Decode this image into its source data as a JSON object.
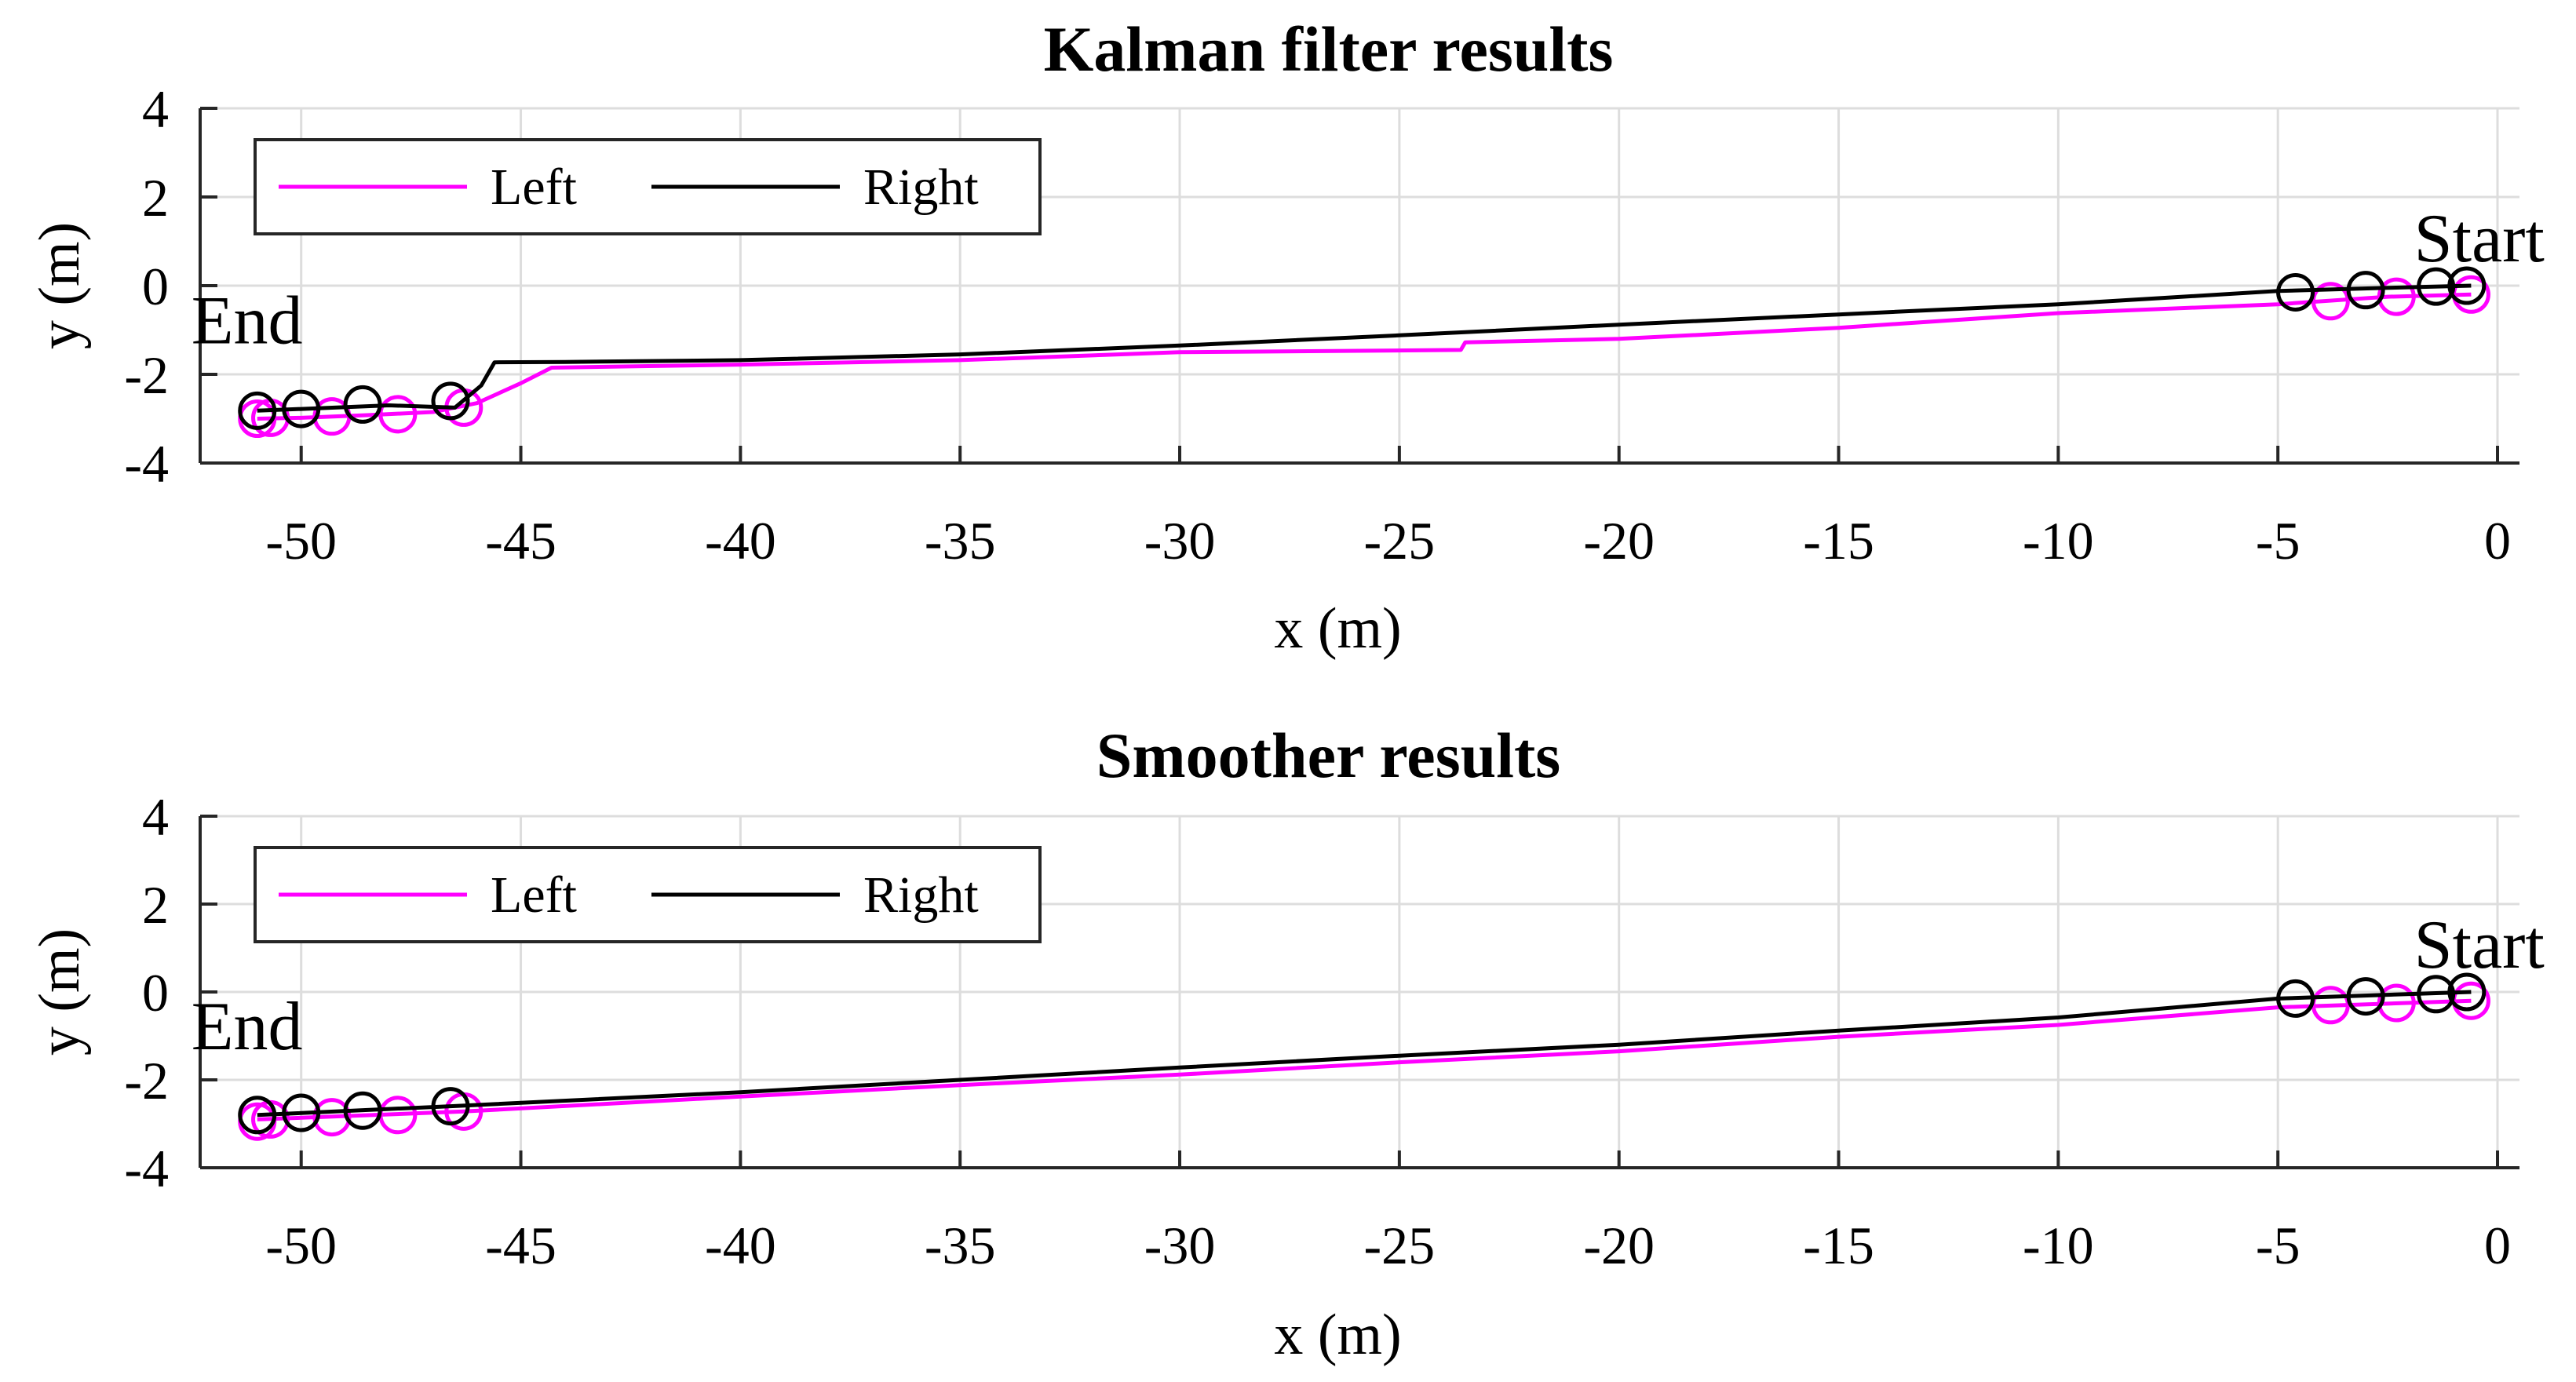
{
  "colors": {
    "left": "#ff00ff",
    "right": "#000000",
    "grid": "#dddddd",
    "axis": "#262626"
  },
  "chart_data": [
    {
      "type": "line",
      "title": "Kalman filter results",
      "xlabel": "x (m)",
      "ylabel": "y (m)",
      "xlim": [
        -52.3,
        0.5
      ],
      "ylim": [
        -4,
        4
      ],
      "xticks": [
        -50,
        -45,
        -40,
        -35,
        -30,
        -25,
        -20,
        -15,
        -10,
        -5,
        0
      ],
      "xtick_labels": [
        "-50",
        "-45",
        "-40",
        "-35",
        "-30",
        "-25",
        "-20",
        "-15",
        "-10",
        "-5",
        "0"
      ],
      "yticks": [
        -4,
        -2,
        0,
        2,
        4
      ],
      "ytick_labels": [
        "-4",
        "-2",
        "0",
        "2",
        "4"
      ],
      "grid": true,
      "legend": {
        "position": "top-left",
        "entries": [
          "Left",
          "Right"
        ]
      },
      "series": [
        {
          "name": "Left",
          "x": [
            -0.6,
            -2.5,
            -5.0,
            -10.0,
            -15.0,
            -20.0,
            -23.5,
            -23.6,
            -30.0,
            -35.0,
            -40.0,
            -44.3,
            -45.0,
            -46.0,
            -47.0,
            -48.5,
            -50.0,
            -51.0
          ],
          "y": [
            -0.2,
            -0.25,
            -0.42,
            -0.62,
            -0.95,
            -1.2,
            -1.28,
            -1.45,
            -1.5,
            -1.68,
            -1.78,
            -1.85,
            -2.2,
            -2.65,
            -2.85,
            -2.92,
            -2.98,
            -3.0
          ],
          "markers_x": [
            -0.6,
            -2.3,
            -3.8,
            -46.3,
            -47.8,
            -49.3,
            -50.7,
            -51.0
          ],
          "markers_y": [
            -0.2,
            -0.25,
            -0.35,
            -2.75,
            -2.9,
            -2.95,
            -2.98,
            -3.0
          ]
        },
        {
          "name": "Right",
          "x": [
            -0.6,
            -2.5,
            -5.0,
            -10.0,
            -15.0,
            -20.0,
            -25.0,
            -30.0,
            -35.0,
            -40.0,
            -44.0,
            -45.6,
            -45.9,
            -46.5,
            -48.0,
            -50.0,
            -51.0
          ],
          "y": [
            0.0,
            -0.05,
            -0.12,
            -0.42,
            -0.65,
            -0.88,
            -1.12,
            -1.35,
            -1.55,
            -1.68,
            -1.72,
            -1.73,
            -2.25,
            -2.75,
            -2.7,
            -2.78,
            -2.82
          ],
          "markers_x": [
            -0.7,
            -1.4,
            -3.0,
            -4.6,
            -46.6,
            -48.6,
            -50.0,
            -51.0
          ],
          "markers_y": [
            0.0,
            -0.02,
            -0.1,
            -0.15,
            -2.6,
            -2.68,
            -2.78,
            -2.82
          ]
        }
      ],
      "annotations": [
        {
          "text": "Start",
          "x": -1.9,
          "y": 0.55
        },
        {
          "text": "End",
          "x": -52.5,
          "y": -1.3
        }
      ]
    },
    {
      "type": "line",
      "title": "Smoother results",
      "xlabel": "x (m)",
      "ylabel": "y (m)",
      "xlim": [
        -52.3,
        0.5
      ],
      "ylim": [
        -4,
        4
      ],
      "xticks": [
        -50,
        -45,
        -40,
        -35,
        -30,
        -25,
        -20,
        -15,
        -10,
        -5,
        0
      ],
      "xtick_labels": [
        "-50",
        "-45",
        "-40",
        "-35",
        "-30",
        "-25",
        "-20",
        "-15",
        "-10",
        "-5",
        "0"
      ],
      "yticks": [
        -4,
        -2,
        0,
        2,
        4
      ],
      "ytick_labels": [
        "-4",
        "-2",
        "0",
        "2",
        "4"
      ],
      "grid": true,
      "legend": {
        "position": "top-left",
        "entries": [
          "Left",
          "Right"
        ]
      },
      "series": [
        {
          "name": "Left",
          "x": [
            -0.6,
            -5.0,
            -10.0,
            -15.0,
            -20.0,
            -25.0,
            -30.0,
            -35.0,
            -40.0,
            -46.3,
            -51.0
          ],
          "y": [
            -0.2,
            -0.35,
            -0.75,
            -1.02,
            -1.35,
            -1.6,
            -1.88,
            -2.12,
            -2.38,
            -2.72,
            -2.9
          ],
          "markers_x": [
            -0.6,
            -2.3,
            -3.8,
            -46.3,
            -47.8,
            -49.3,
            -50.7,
            -51.0
          ],
          "markers_y": [
            -0.2,
            -0.25,
            -0.3,
            -2.72,
            -2.8,
            -2.85,
            -2.9,
            -2.95
          ]
        },
        {
          "name": "Right",
          "x": [
            -0.6,
            -5.0,
            -10.0,
            -15.0,
            -20.0,
            -25.0,
            -30.0,
            -35.0,
            -40.0,
            -46.6,
            -51.0
          ],
          "y": [
            0.0,
            -0.15,
            -0.58,
            -0.88,
            -1.2,
            -1.45,
            -1.72,
            -2.0,
            -2.28,
            -2.6,
            -2.8
          ],
          "markers_x": [
            -0.7,
            -1.4,
            -3.0,
            -4.6,
            -46.6,
            -48.6,
            -50.0,
            -51.0
          ],
          "markers_y": [
            0.0,
            -0.05,
            -0.1,
            -0.15,
            -2.6,
            -2.7,
            -2.75,
            -2.8
          ]
        }
      ],
      "annotations": [
        {
          "text": "Start",
          "x": -1.9,
          "y": 0.55
        },
        {
          "text": "End",
          "x": -52.5,
          "y": -1.3
        }
      ]
    }
  ]
}
